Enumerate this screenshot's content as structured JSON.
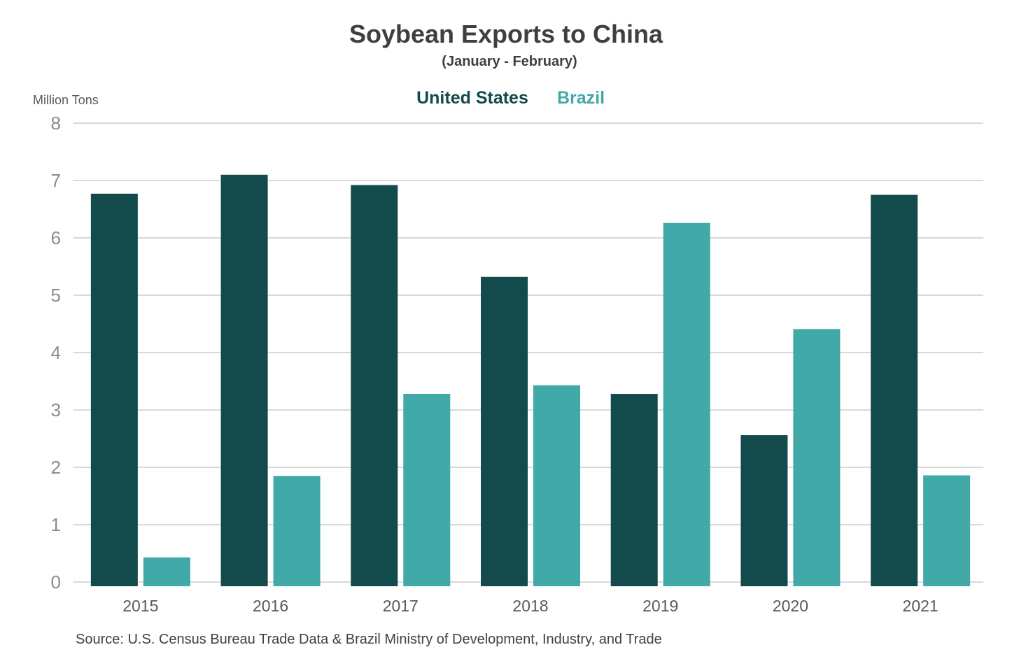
{
  "chart_data": {
    "type": "bar",
    "title": "Soybean Exports to China",
    "subtitle": "(January - February)",
    "ylabel": "Million Tons",
    "xlabel": "",
    "source": "Source: U.S. Census Bureau Trade Data & Brazil Ministry of Development, Industry, and Trade",
    "categories": [
      "2015",
      "2016",
      "2017",
      "2018",
      "2019",
      "2020",
      "2021"
    ],
    "yticks": [
      "0",
      "1",
      "2",
      "3",
      "4",
      "5",
      "6",
      "7",
      "8"
    ],
    "ylim": [
      0,
      8
    ],
    "grid": true,
    "legend_position": "top-center",
    "series": [
      {
        "name": "United States",
        "color": "#134a4b",
        "values": [
          6.77,
          7.1,
          6.92,
          5.32,
          3.28,
          2.56,
          6.75
        ]
      },
      {
        "name": "Brazil",
        "color": "#41a9a7",
        "values": [
          0.43,
          1.85,
          3.28,
          3.43,
          6.26,
          4.41,
          1.86
        ]
      }
    ]
  }
}
